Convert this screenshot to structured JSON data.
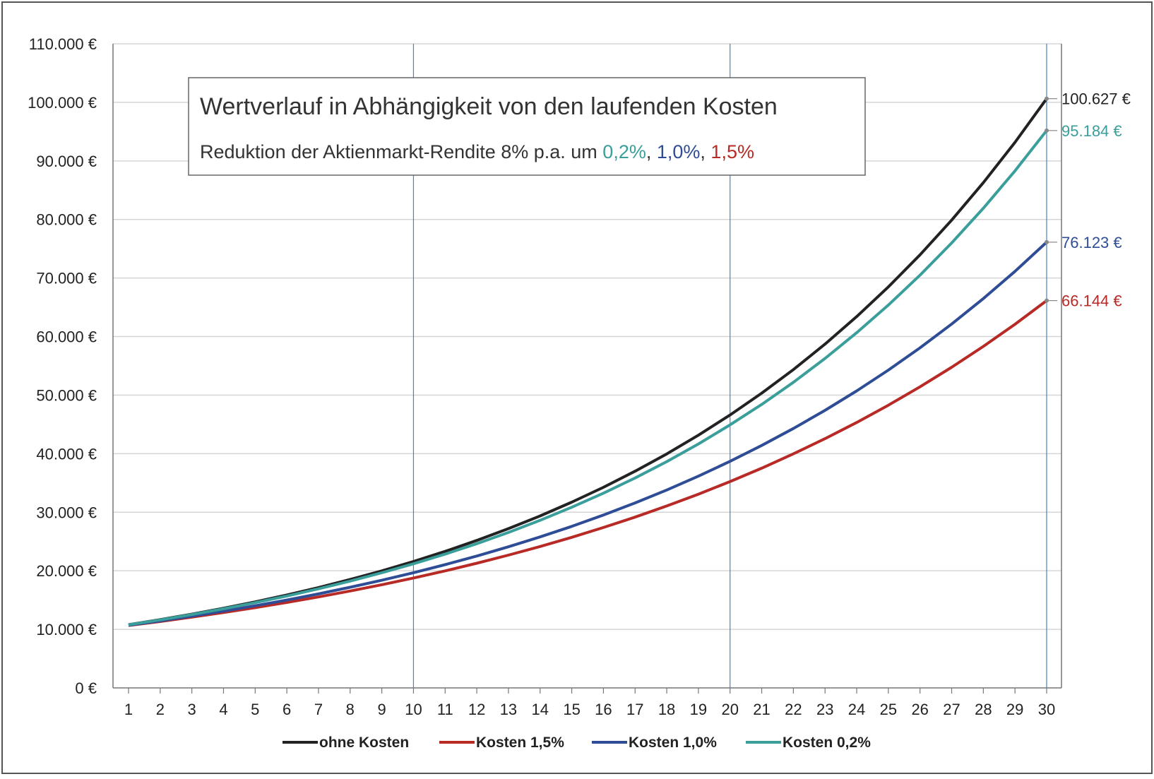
{
  "chart_data": {
    "type": "line",
    "title": "Wertverlauf in Abhängigkeit von den laufenden Kosten",
    "subtitle": {
      "prefix": "Reduktion der Aktienmarkt-Rendite 8% p.a. um ",
      "parts": [
        {
          "text": "0,2%",
          "color": "#3a9e9a"
        },
        {
          "text": ", ",
          "color": "#333333"
        },
        {
          "text": "1,0%",
          "color": "#2f4d97"
        },
        {
          "text": ", ",
          "color": "#333333"
        },
        {
          "text": "1,5%",
          "color": "#b82a25"
        }
      ]
    },
    "x": [
      1,
      2,
      3,
      4,
      5,
      6,
      7,
      8,
      9,
      10,
      11,
      12,
      13,
      14,
      15,
      16,
      17,
      18,
      19,
      20,
      21,
      22,
      23,
      24,
      25,
      26,
      27,
      28,
      29,
      30
    ],
    "ylim": [
      0,
      110000
    ],
    "y_ticks": [
      0,
      10000,
      20000,
      30000,
      40000,
      50000,
      60000,
      70000,
      80000,
      90000,
      100000,
      110000
    ],
    "y_tick_labels": [
      "0 €",
      "10.000 €",
      "20.000 €",
      "30.000 €",
      "40.000 €",
      "50.000 €",
      "60.000 €",
      "70.000 €",
      "80.000 €",
      "90.000 €",
      "100.000 €",
      "110.000 €"
    ],
    "x_tick_labels": [
      "1",
      "2",
      "3",
      "4",
      "5",
      "6",
      "7",
      "8",
      "9",
      "10",
      "11",
      "12",
      "13",
      "14",
      "15",
      "16",
      "17",
      "18",
      "19",
      "20",
      "21",
      "22",
      "23",
      "24",
      "25",
      "26",
      "27",
      "28",
      "29",
      "30"
    ],
    "vertical_markers": [
      10,
      20,
      30
    ],
    "grid": "horizontal",
    "legend_position": "bottom",
    "series": [
      {
        "name": "ohne Kosten",
        "color": "#222222",
        "rate": 0.08,
        "base": 10000,
        "end_label": "100.627 €"
      },
      {
        "name": "Kosten 1,5%",
        "color": "#b82a25",
        "rate": 0.065,
        "base": 10000,
        "end_label": "66.144 €"
      },
      {
        "name": "Kosten 1,0%",
        "color": "#2f4d97",
        "rate": 0.07,
        "base": 10000,
        "end_label": "76.123 €"
      },
      {
        "name": "Kosten 0,2%",
        "color": "#3a9e9a",
        "rate": 0.078,
        "base": 10000,
        "end_label": "95.184 €"
      }
    ]
  }
}
